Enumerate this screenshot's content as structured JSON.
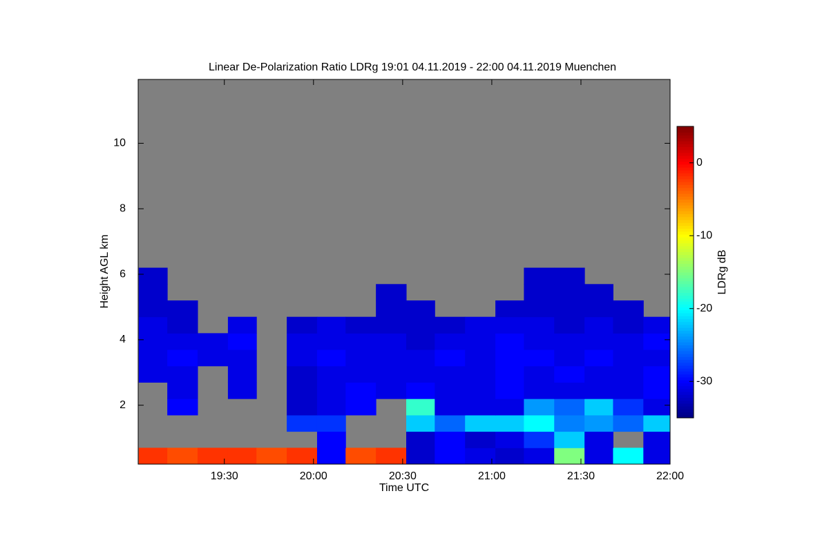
{
  "chart_data": {
    "type": "heatmap",
    "title": "Linear De-Polarization Ratio LDRg   19:01 04.11.2019 - 22:00 04.11.2019 Muenchen",
    "x_label": "Time UTC",
    "y_label": "Height AGL km",
    "colorbar_label": "LDRg dB",
    "colormap": "jet",
    "background": "#808080",
    "xlim": [
      19.0167,
      22.0
    ],
    "xticks": [
      {
        "value": 19.5,
        "label": "19:30"
      },
      {
        "value": 20.0,
        "label": "20:00"
      },
      {
        "value": 20.5,
        "label": "20:30"
      },
      {
        "value": 21.0,
        "label": "21:00"
      },
      {
        "value": 21.5,
        "label": "21:30"
      },
      {
        "value": 22.0,
        "label": "22:00"
      }
    ],
    "ylim": [
      0.2,
      11.95
    ],
    "yticks": [
      2,
      4,
      6,
      8,
      10
    ],
    "zlim": [
      -35,
      5
    ],
    "zticks": [
      0,
      -10,
      -20,
      -30
    ],
    "xbins": [
      19.02,
      19.18,
      19.35,
      19.52,
      19.68,
      19.85,
      20.02,
      20.18,
      20.35,
      20.52,
      20.68,
      20.85,
      21.02,
      21.18,
      21.35,
      21.52,
      21.68,
      21.85,
      22.0
    ],
    "ybins": [
      0.2,
      0.7,
      1.2,
      1.7,
      2.2,
      2.7,
      3.2,
      3.7,
      4.2,
      4.7,
      5.2,
      5.7,
      6.2
    ],
    "z": [
      [
        -2,
        -3,
        -2,
        -2,
        -3,
        -2,
        -30,
        -3,
        -2,
        -32,
        -30,
        -31,
        -32,
        -31,
        -15,
        -31,
        -20,
        -31
      ],
      [
        null,
        null,
        null,
        null,
        null,
        null,
        -30,
        null,
        null,
        -32,
        -30,
        -32,
        -31,
        -28,
        -22,
        -31,
        null,
        -31
      ],
      [
        null,
        null,
        null,
        null,
        null,
        -28,
        -28,
        null,
        null,
        -22,
        -26,
        -22,
        -22,
        -20,
        -25,
        -24,
        -26,
        -22
      ],
      [
        null,
        -30,
        null,
        null,
        null,
        -32,
        -31,
        -30,
        null,
        -18,
        -31,
        -31,
        -31,
        -24,
        -26,
        -22,
        -28,
        -31
      ],
      [
        null,
        -31,
        null,
        -31,
        null,
        -32,
        -31,
        -30,
        -31,
        -30,
        -31,
        -31,
        -30,
        -31,
        -31,
        -31,
        -31,
        -30
      ],
      [
        -31,
        -31,
        null,
        -31,
        null,
        -32,
        -31,
        -31,
        -31,
        -31,
        -31,
        -31,
        -30,
        -31,
        -30,
        -31,
        -31,
        -30
      ],
      [
        -31,
        -30,
        -31,
        -31,
        null,
        -31,
        -30,
        -31,
        -31,
        -31,
        -30,
        -31,
        -30,
        -30,
        -31,
        -30,
        -31,
        -31
      ],
      [
        -31,
        -31,
        -31,
        -30,
        null,
        -31,
        -31,
        -31,
        -31,
        -32,
        -31,
        -31,
        -30,
        -31,
        -31,
        -31,
        -31,
        -30
      ],
      [
        -31,
        -32,
        null,
        -31,
        null,
        -32,
        -31,
        -32,
        -32,
        -32,
        -32,
        -31,
        -31,
        -31,
        -32,
        -31,
        -32,
        -31
      ],
      [
        -32,
        -32,
        null,
        null,
        null,
        null,
        null,
        null,
        -32,
        -32,
        null,
        null,
        -32,
        -32,
        -32,
        -32,
        -32,
        null
      ],
      [
        -32,
        null,
        null,
        null,
        null,
        null,
        null,
        null,
        -32,
        null,
        null,
        null,
        null,
        -32,
        -32,
        -32,
        null,
        null
      ],
      [
        -32,
        null,
        null,
        null,
        null,
        null,
        null,
        null,
        null,
        null,
        null,
        null,
        null,
        -32,
        -32,
        null,
        null,
        null
      ]
    ]
  }
}
